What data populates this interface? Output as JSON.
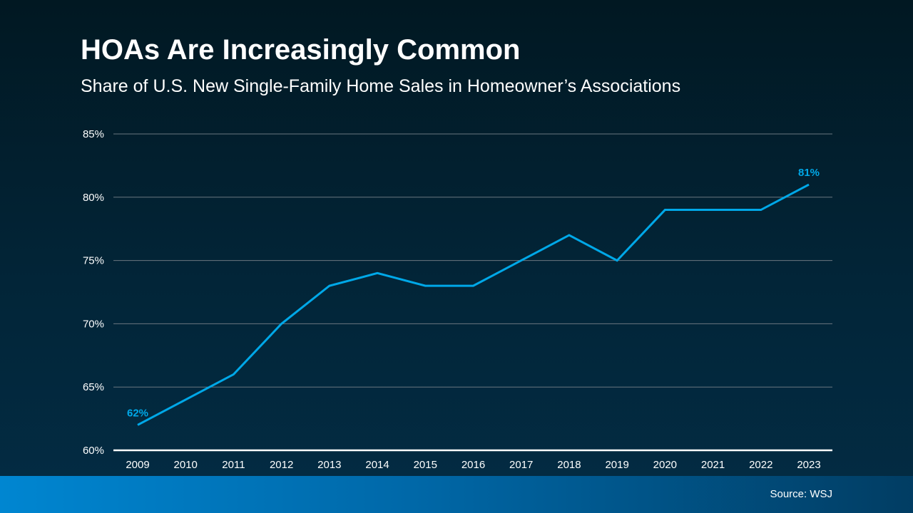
{
  "title": "HOAs Are Increasingly Common",
  "subtitle": "Share of U.S. New Single-Family Home Sales in Homeowner’s Associations",
  "source": "Source: WSJ",
  "chart_data": {
    "type": "line",
    "title": "HOAs Are Increasingly Common",
    "subtitle": "Share of U.S. New Single-Family Home Sales in Homeowner’s Associations",
    "categories": [
      "2009",
      "2010",
      "2011",
      "2012",
      "2013",
      "2014",
      "2015",
      "2016",
      "2017",
      "2018",
      "2019",
      "2020",
      "2021",
      "2022",
      "2023"
    ],
    "values": [
      62,
      64,
      66,
      70,
      73,
      74,
      73,
      73,
      75,
      77,
      75,
      79,
      79,
      79,
      81
    ],
    "ylim": [
      60,
      85
    ],
    "yticks": [
      60,
      65,
      70,
      75,
      80,
      85
    ],
    "ytick_labels": [
      "60%",
      "65%",
      "70%",
      "75%",
      "80%",
      "85%"
    ],
    "data_labels": [
      {
        "index": 0,
        "text": "62%"
      },
      {
        "index": 14,
        "text": "81%"
      }
    ],
    "grid": true,
    "line_color": "#00a8e8",
    "legend": "none"
  }
}
